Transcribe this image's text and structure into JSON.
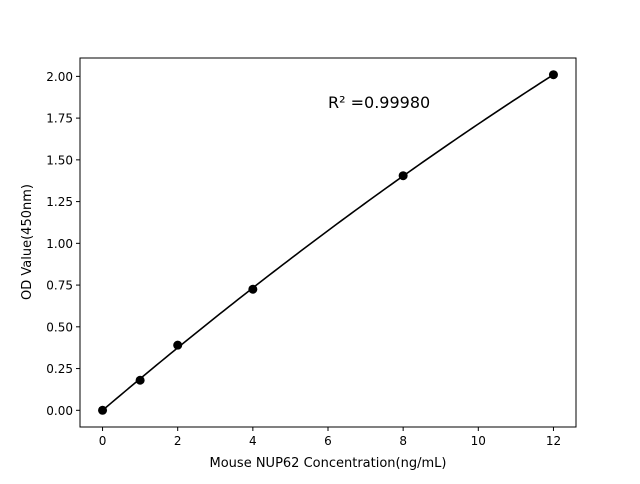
{
  "chart_data": {
    "type": "scatter",
    "title": "",
    "xlabel": "Mouse NUP62 Concentration(ng/mL)",
    "ylabel": "OD Value(450nm)",
    "x": [
      0,
      1,
      2,
      4,
      8,
      12
    ],
    "y": [
      0.0,
      0.18,
      0.39,
      0.725,
      1.405,
      2.01
    ],
    "fit_line": true,
    "annotation": "R² =0.99980",
    "xlim": [
      -0.6,
      12.6
    ],
    "ylim": [
      -0.1,
      2.11
    ],
    "xticks": [
      0,
      2,
      4,
      6,
      8,
      10,
      12
    ],
    "xtick_labels": [
      "0",
      "2",
      "4",
      "6",
      "8",
      "10",
      "12"
    ],
    "yticks": [
      0,
      0.25,
      0.5,
      0.75,
      1.0,
      1.25,
      1.5,
      1.75,
      2.0
    ],
    "ytick_labels": [
      "0.00",
      "0.25",
      "0.50",
      "0.75",
      "1.00",
      "1.25",
      "1.50",
      "1.75",
      "2.00"
    ],
    "grid": false,
    "colors": {
      "points": "#000000",
      "line": "#000000"
    }
  }
}
